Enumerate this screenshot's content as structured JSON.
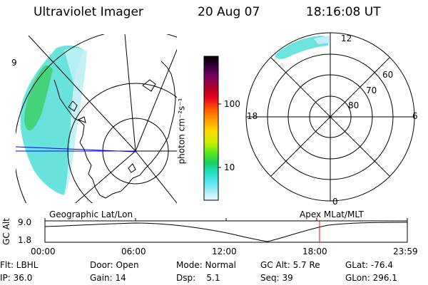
{
  "header": {
    "instrument": "Ultraviolet Imager",
    "date": "20 Aug 07",
    "time": "18:16:08 UT"
  },
  "geo_map": {
    "label": "Geographic Lat/Lon",
    "edge_label": "9"
  },
  "colorbar": {
    "unit_label": "photon cm⁻²s⁻¹",
    "ticks": [
      "100",
      "10"
    ],
    "colors": [
      "#000000",
      "#3a0040",
      "#7a0060",
      "#b00028",
      "#e8001c",
      "#ff5a00",
      "#ff9a00",
      "#ffd800",
      "#c8f000",
      "#5ce81a",
      "#18d060",
      "#1ee0c8",
      "#66e8f0",
      "#b8f0f8",
      "#e8f8ff"
    ]
  },
  "polar_plot": {
    "label": "Apex MLat/MLT",
    "mlt_labels": {
      "top": "12",
      "left": "18",
      "right": "6",
      "bottom": "0"
    },
    "lat_labels": [
      "60",
      "70",
      "80"
    ]
  },
  "altitude_plot": {
    "axis_label": "GC Alt",
    "y_ticks": [
      "9.0",
      "1.8"
    ],
    "x_ticks": [
      "00:00",
      "06:00",
      "12:00",
      "18:00",
      "23:59"
    ],
    "current_marker_time": "18:16"
  },
  "info": {
    "row1": {
      "flt": "Flt: LBHL",
      "door": "Door: Open",
      "mode": "Mode: Normal",
      "gcalt": "GC Alt: 5.7 Re",
      "glat": "GLat: -76.4"
    },
    "row2": {
      "ip": "IP: 36.0",
      "gain": "Gain: 14",
      "dsp": "Dsp:    5.1",
      "seq": "Seq: 39",
      "glon": "GLon: 296.1"
    }
  }
}
